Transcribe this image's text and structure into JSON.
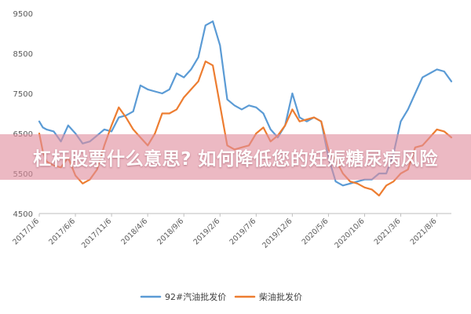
{
  "overlay": {
    "title": "杠杆股票什么意思? 如何降低您的妊娠糖尿病风险"
  },
  "colors": {
    "series_blue": "#5b9bd5",
    "series_orange": "#ed7d31",
    "axis": "#bfbfbf",
    "tick_text": "#595959",
    "banner": "#e08e9e"
  },
  "chart_data": {
    "type": "line",
    "title": "",
    "xlabel": "",
    "ylabel": "",
    "ylim": [
      4500,
      9500
    ],
    "yticks": [
      4500,
      5500,
      6500,
      7500,
      8500,
      9500
    ],
    "ytick_labels": [
      "4500",
      "5500",
      "6500",
      "7500",
      "8500",
      "9500"
    ],
    "xtick_labels": [
      "2017/1/6",
      "2017/6/6",
      "2017/11/6",
      "2018/4/6",
      "2018/9/6",
      "2019/2/6",
      "2019/7/6",
      "2019/12/6",
      "2020/5/6",
      "2020/10/6",
      "2021/3/6",
      "2021/8/6"
    ],
    "grid": false,
    "legend_position": "bottom",
    "series": [
      {
        "name": "92#汽油批发价",
        "color": "#5b9bd5",
        "x_months": [
          0,
          0.5,
          1,
          2,
          3,
          4,
          5,
          6,
          7,
          8,
          9,
          10,
          11,
          12,
          13,
          14,
          15,
          16,
          17,
          18,
          19,
          20,
          21,
          22,
          23,
          24,
          25,
          26,
          27,
          28,
          29,
          30,
          31,
          32,
          33,
          34,
          35,
          36,
          37,
          38,
          39,
          40,
          41,
          42,
          43,
          44,
          45,
          46,
          47,
          48,
          49,
          50,
          51,
          52,
          53,
          54,
          55,
          56,
          57
        ],
        "values": [
          6800,
          6650,
          6600,
          6550,
          6300,
          6700,
          6500,
          6250,
          6300,
          6450,
          6600,
          6550,
          6900,
          6950,
          7050,
          7700,
          7600,
          7550,
          7500,
          7600,
          8000,
          7900,
          8100,
          8400,
          9200,
          9300,
          8700,
          7350,
          7200,
          7100,
          7200,
          7150,
          7000,
          6600,
          6400,
          6700,
          7500,
          6900,
          6800,
          6900,
          6800,
          5900,
          5300,
          5200,
          5250,
          5300,
          5350,
          5350,
          5500,
          5500,
          6000,
          6800,
          7100,
          7500,
          7900,
          8000,
          8100,
          8050,
          7800
        ],
        "note": "values approximate, read from chart"
      },
      {
        "name": "柴油批发价",
        "color": "#ed7d31",
        "x_months": [
          0,
          0.5,
          1,
          2,
          3,
          4,
          5,
          6,
          7,
          8,
          9,
          10,
          11,
          12,
          13,
          14,
          15,
          16,
          17,
          18,
          19,
          20,
          21,
          22,
          23,
          24,
          25,
          26,
          27,
          28,
          29,
          30,
          31,
          32,
          33,
          34,
          35,
          36,
          37,
          38,
          39,
          40,
          41,
          42,
          43,
          44,
          45,
          46,
          47,
          48,
          49,
          50,
          51,
          52,
          53,
          54,
          55,
          56,
          57
        ],
        "values": [
          6500,
          6050,
          5800,
          5700,
          5650,
          5900,
          5450,
          5250,
          5350,
          5600,
          6200,
          6700,
          7150,
          6900,
          6600,
          6400,
          6200,
          6500,
          7000,
          7000,
          7100,
          7400,
          7600,
          7800,
          8300,
          8200,
          7200,
          6200,
          6100,
          6150,
          6200,
          6500,
          6650,
          6300,
          6450,
          6700,
          7100,
          6800,
          6850,
          6900,
          6800,
          6100,
          5850,
          5500,
          5300,
          5250,
          5150,
          5100,
          4950,
          5200,
          5300,
          5500,
          5600,
          6150,
          6200,
          6400,
          6600,
          6550,
          6400
        ],
        "note": "values approximate, read from chart"
      }
    ]
  }
}
